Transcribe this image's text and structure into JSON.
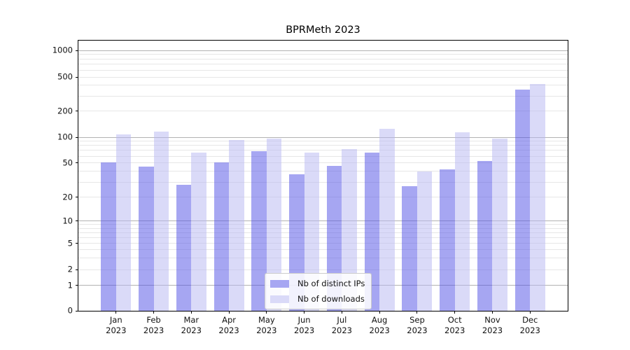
{
  "chart_data": {
    "type": "bar",
    "title": "BPRMeth 2023",
    "year_label": "2023",
    "categories": [
      "Jan",
      "Feb",
      "Mar",
      "Apr",
      "May",
      "Jun",
      "Jul",
      "Aug",
      "Sep",
      "Oct",
      "Nov",
      "Dec"
    ],
    "series": [
      {
        "name": "Nb of distinct IPs",
        "color": "#a6a6f2",
        "values": [
          51,
          45,
          28,
          51,
          68,
          37,
          46,
          66,
          27,
          42,
          53,
          355
        ]
      },
      {
        "name": "Nb of downloads",
        "color": "#dadaf8",
        "values": [
          108,
          115,
          66,
          92,
          96,
          66,
          72,
          126,
          40,
          114,
          97,
          414
        ]
      }
    ],
    "y_ticks": [
      0,
      1,
      2,
      5,
      10,
      20,
      50,
      100,
      200,
      500,
      1000
    ],
    "ylim": [
      0,
      1300
    ],
    "xlabel": "",
    "ylabel": "",
    "yscale": "log-like (0 baseline, log above 1)",
    "grid": true,
    "legend_position": "lower center"
  },
  "colors": {
    "grid_major": "#b2b2b2",
    "grid_minor": "#e7e7e7",
    "axis": "#000000",
    "background": "#ffffff"
  }
}
